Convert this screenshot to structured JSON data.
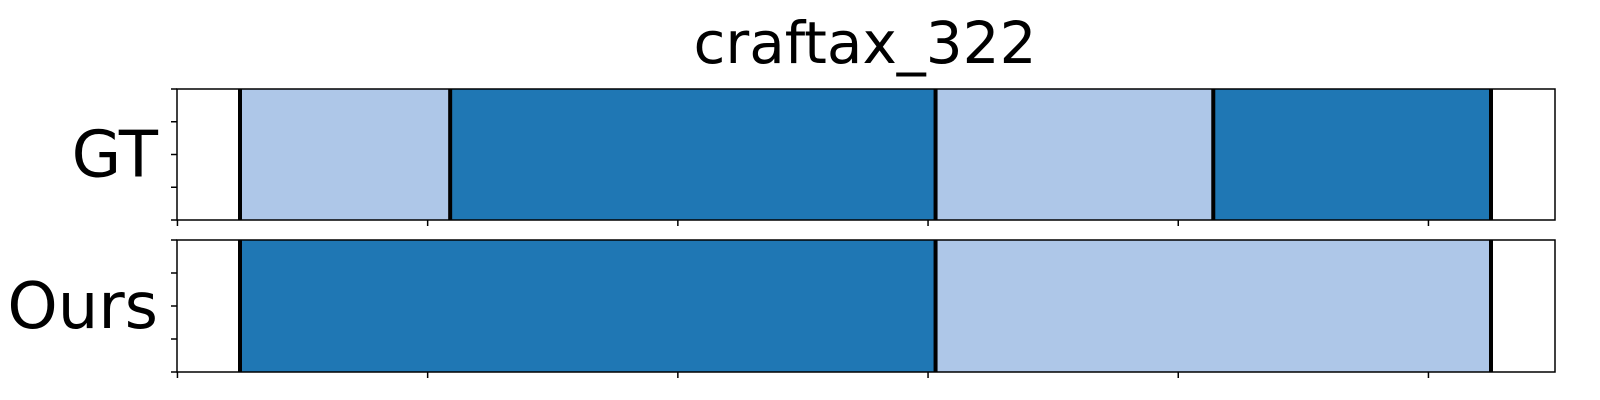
{
  "chart_data": {
    "type": "bar",
    "title": "craftax_322",
    "xlim": [
      0,
      100
    ],
    "colors": {
      "dark": "#1f77b4",
      "light": "#aec7e8",
      "boundary": "#000000"
    },
    "rows": [
      {
        "label": "GT",
        "segments": [
          {
            "start": 5,
            "end": 21.8,
            "color": "light"
          },
          {
            "start": 21.8,
            "end": 60.6,
            "color": "dark"
          },
          {
            "start": 60.6,
            "end": 82.8,
            "color": "light"
          },
          {
            "start": 82.8,
            "end": 105,
            "color": "dark"
          }
        ]
      },
      {
        "label": "Ours",
        "segments": [
          {
            "start": 5,
            "end": 60.6,
            "color": "dark"
          },
          {
            "start": 60.6,
            "end": 105,
            "color": "light"
          }
        ]
      }
    ]
  }
}
